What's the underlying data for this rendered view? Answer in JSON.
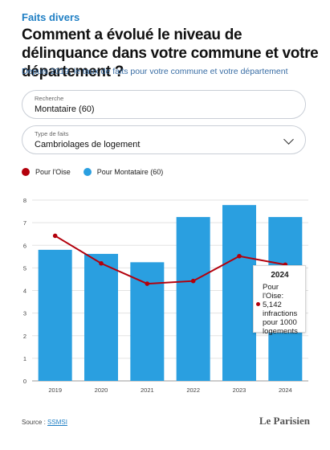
{
  "header": {
    "kicker": "Faits divers",
    "title": "Comment a évolué le niveau de délinquance dans votre commune et votre département ?",
    "subtitle": "Depuis 2019, le taux de faits pour votre commune et votre département"
  },
  "search": {
    "label": "Recherche",
    "value": "Montataire (60)"
  },
  "type_select": {
    "label": "Type de faits",
    "value": "Cambriolages de logement",
    "icon": "chevron-down-icon"
  },
  "legend": {
    "items": [
      {
        "label": "Pour l'Oise",
        "color": "#b3000c"
      },
      {
        "label": "Pour Montataire (60)",
        "color": "#2a9fe0"
      }
    ]
  },
  "tooltip": {
    "year": "2024",
    "line1": "Pour l'Oise:",
    "line2": "5,142",
    "line3": "infractions",
    "line4": "pour 1000",
    "line5": "logements"
  },
  "footer": {
    "source_prefix": "Source : ",
    "source_link": "SSMSI",
    "brand": "Le Parisien"
  },
  "chart_data": {
    "type": "bar",
    "categories": [
      "2019",
      "2020",
      "2021",
      "2022",
      "2023",
      "2024"
    ],
    "series": [
      {
        "name": "Pour Montataire (60)",
        "kind": "bar",
        "color": "#2a9fe0",
        "values": [
          5.8,
          5.62,
          5.25,
          7.25,
          7.78,
          7.25
        ]
      },
      {
        "name": "Pour l'Oise",
        "kind": "line",
        "color": "#b3000c",
        "values": [
          6.42,
          5.2,
          4.3,
          4.42,
          5.52,
          5.142
        ]
      }
    ],
    "ylim": [
      0,
      8
    ],
    "yticks": [
      "0",
      "1",
      "2",
      "3",
      "4",
      "5",
      "6",
      "7",
      "8"
    ],
    "grid": true
  }
}
